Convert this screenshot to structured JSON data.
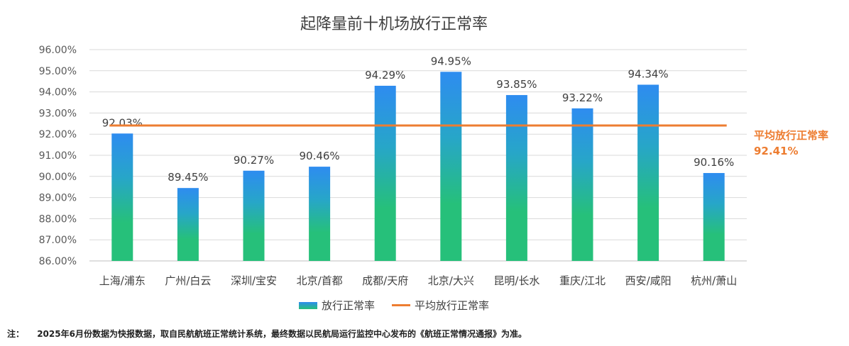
{
  "chart_data": {
    "type": "bar",
    "title": "起降量前十机场放行正常率",
    "categories": [
      "上海/浦东",
      "广州/白云",
      "深圳/宝安",
      "北京/首都",
      "成都/天府",
      "北京/大兴",
      "昆明/长水",
      "重庆/江北",
      "西安/咸阳",
      "杭州/萧山"
    ],
    "series": [
      {
        "name": "放行正常率",
        "values": [
          92.03,
          89.45,
          90.27,
          90.46,
          94.29,
          94.95,
          93.85,
          93.22,
          94.34,
          90.16
        ]
      },
      {
        "name": "平均放行正常率",
        "type": "line",
        "value": 92.41
      }
    ],
    "data_labels": [
      "92.03%",
      "89.45%",
      "90.27%",
      "90.46%",
      "94.29%",
      "94.95%",
      "93.85%",
      "93.22%",
      "94.34%",
      "90.16%"
    ],
    "yticks": [
      "86.00%",
      "87.00%",
      "88.00%",
      "89.00%",
      "90.00%",
      "91.00%",
      "92.00%",
      "93.00%",
      "94.00%",
      "95.00%",
      "96.00%"
    ],
    "ylim": [
      86,
      96
    ],
    "grid": true,
    "legend_position": "bottom",
    "colors": {
      "bar_top": "#2E8CF0",
      "bar_bottom": "#26C07A",
      "avg_line": "#ED7D31"
    }
  },
  "average_annotation": {
    "label": "平均放行正常率",
    "value": "92.41%"
  },
  "footnote": {
    "label": "注：",
    "text": "2025年6月份数据为快报数据，取自民航航班正常统计系统，最终数据以民航局运行监控中心发布的《航班正常情况通报》为准。"
  }
}
